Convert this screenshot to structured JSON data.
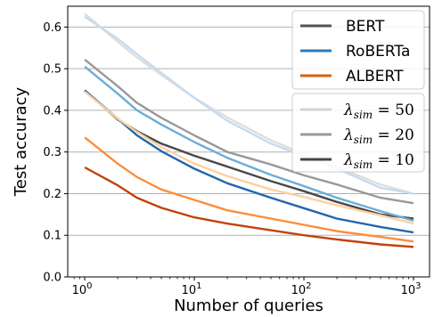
{
  "chart_data": {
    "type": "line",
    "xlabel": "Number of queries",
    "ylabel": "Test accuracy",
    "xscale": "log",
    "xlim": [
      0.7,
      1400
    ],
    "ylim": [
      0.0,
      0.65
    ],
    "xticks": [
      1,
      10,
      100,
      1000
    ],
    "xtick_labels": [
      {
        "base": "10",
        "exp": "0"
      },
      {
        "base": "10",
        "exp": "1"
      },
      {
        "base": "10",
        "exp": "2"
      },
      {
        "base": "10",
        "exp": "3"
      }
    ],
    "yticks": [
      0.0,
      0.1,
      0.2,
      0.3,
      0.4,
      0.5,
      0.6
    ],
    "ytick_labels": [
      "0.0",
      "0.1",
      "0.2",
      "0.3",
      "0.4",
      "0.5",
      "0.6"
    ],
    "grid": "horizontal",
    "legends": [
      {
        "placement": "top-right",
        "entries": [
          {
            "label": "BERT",
            "color": "#555555"
          },
          {
            "label": "RoBERTa",
            "color": "#2b7bba"
          },
          {
            "label": "ALBERT",
            "color": "#d95f0e"
          }
        ]
      },
      {
        "placement": "right",
        "entries": [
          {
            "symbol": "λ",
            "sub": "sim",
            "text": " = 50",
            "color": "#d3d3d3"
          },
          {
            "symbol": "λ",
            "sub": "sim",
            "text": " = 20",
            "color": "#999999"
          },
          {
            "symbol": "λ",
            "sub": "sim",
            "text": " = 10",
            "color": "#444444"
          }
        ]
      }
    ],
    "series": [
      {
        "model": "BERT",
        "lambda": 50,
        "color": "#dedede",
        "x": [
          1,
          2,
          3,
          5,
          10,
          20,
          50,
          100,
          200,
          500,
          1000
        ],
        "y": [
          0.632,
          0.565,
          0.527,
          0.485,
          0.43,
          0.383,
          0.328,
          0.295,
          0.264,
          0.222,
          0.2
        ]
      },
      {
        "model": "BERT",
        "lambda": 20,
        "color": "#999999",
        "x": [
          1,
          2,
          3,
          5,
          10,
          20,
          50,
          100,
          200,
          500,
          1000
        ],
        "y": [
          0.522,
          0.458,
          0.418,
          0.382,
          0.34,
          0.3,
          0.27,
          0.244,
          0.222,
          0.19,
          0.177
        ]
      },
      {
        "model": "BERT",
        "lambda": 10,
        "color": "#484848",
        "x": [
          1,
          2,
          3,
          5,
          10,
          20,
          50,
          100,
          200,
          500,
          1000
        ],
        "y": [
          0.448,
          0.378,
          0.35,
          0.32,
          0.291,
          0.265,
          0.23,
          0.206,
          0.18,
          0.15,
          0.14
        ]
      },
      {
        "model": "RoBERTa",
        "lambda": 50,
        "color": "#c6dbef",
        "x": [
          1,
          2,
          3,
          5,
          10,
          20,
          50,
          100,
          200,
          500,
          1000
        ],
        "y": [
          0.625,
          0.572,
          0.535,
          0.49,
          0.43,
          0.375,
          0.32,
          0.29,
          0.26,
          0.214,
          0.2
        ]
      },
      {
        "model": "RoBERTa",
        "lambda": 20,
        "color": "#6baed6",
        "x": [
          1,
          2,
          3,
          5,
          10,
          20,
          50,
          100,
          200,
          500,
          1000
        ],
        "y": [
          0.505,
          0.44,
          0.4,
          0.366,
          0.324,
          0.286,
          0.245,
          0.218,
          0.19,
          0.158,
          0.135
        ]
      },
      {
        "model": "RoBERTa",
        "lambda": 10,
        "color": "#2166ac",
        "x": [
          1,
          2,
          3,
          5,
          10,
          20,
          50,
          100,
          200,
          500,
          1000
        ],
        "y": [
          0.448,
          0.38,
          0.34,
          0.302,
          0.26,
          0.225,
          0.19,
          0.165,
          0.14,
          0.12,
          0.107
        ]
      },
      {
        "model": "ALBERT",
        "lambda": 50,
        "color": "#fdd0a2",
        "x": [
          1,
          2,
          3,
          5,
          10,
          20,
          50,
          100,
          200,
          500,
          1000
        ],
        "y": [
          0.445,
          0.38,
          0.348,
          0.312,
          0.272,
          0.242,
          0.21,
          0.192,
          0.172,
          0.148,
          0.128
        ]
      },
      {
        "model": "ALBERT",
        "lambda": 20,
        "color": "#fd8d3c",
        "x": [
          1,
          2,
          3,
          5,
          10,
          20,
          50,
          100,
          200,
          500,
          1000
        ],
        "y": [
          0.335,
          0.272,
          0.24,
          0.21,
          0.185,
          0.16,
          0.14,
          0.125,
          0.11,
          0.096,
          0.085
        ]
      },
      {
        "model": "ALBERT",
        "lambda": 10,
        "color": "#c2420c",
        "x": [
          1,
          2,
          3,
          5,
          10,
          20,
          50,
          100,
          200,
          500,
          1000
        ],
        "y": [
          0.263,
          0.22,
          0.19,
          0.166,
          0.143,
          0.128,
          0.112,
          0.1,
          0.09,
          0.078,
          0.072
        ]
      }
    ]
  }
}
